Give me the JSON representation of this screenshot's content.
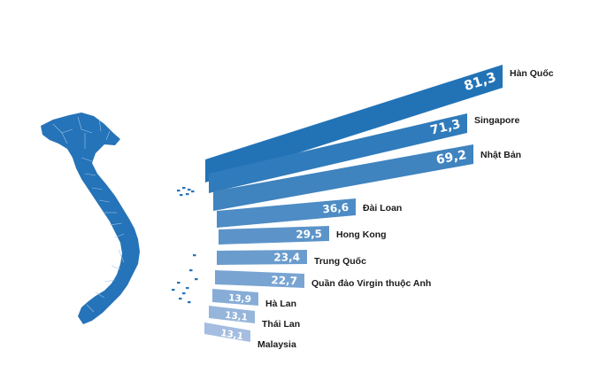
{
  "colors": {
    "map": "#2573b8",
    "bar_dark": "#2273b6",
    "bar_light": "#a4bde0"
  },
  "chart_data": {
    "type": "bar",
    "orientation": "horizontal",
    "categories": [
      "Hàn Quốc",
      "Singapore",
      "Nhật Bản",
      "Đài Loan",
      "Hong Kong",
      "Trung Quốc",
      "Quần đảo Virgin thuộc Anh",
      "Hà Lan",
      "Thái Lan",
      "Malaysia"
    ],
    "values": [
      81.3,
      71.3,
      69.2,
      36.6,
      29.5,
      23.4,
      22.7,
      13.9,
      13.1,
      13.1
    ],
    "value_labels": [
      "81,3",
      "71,3",
      "69,2",
      "36,6",
      "29,5",
      "23,4",
      "22,7",
      "13,9",
      "13,1",
      "13,1"
    ],
    "title": "",
    "xlabel": "",
    "ylabel": "",
    "legend": "none",
    "grid": false
  }
}
